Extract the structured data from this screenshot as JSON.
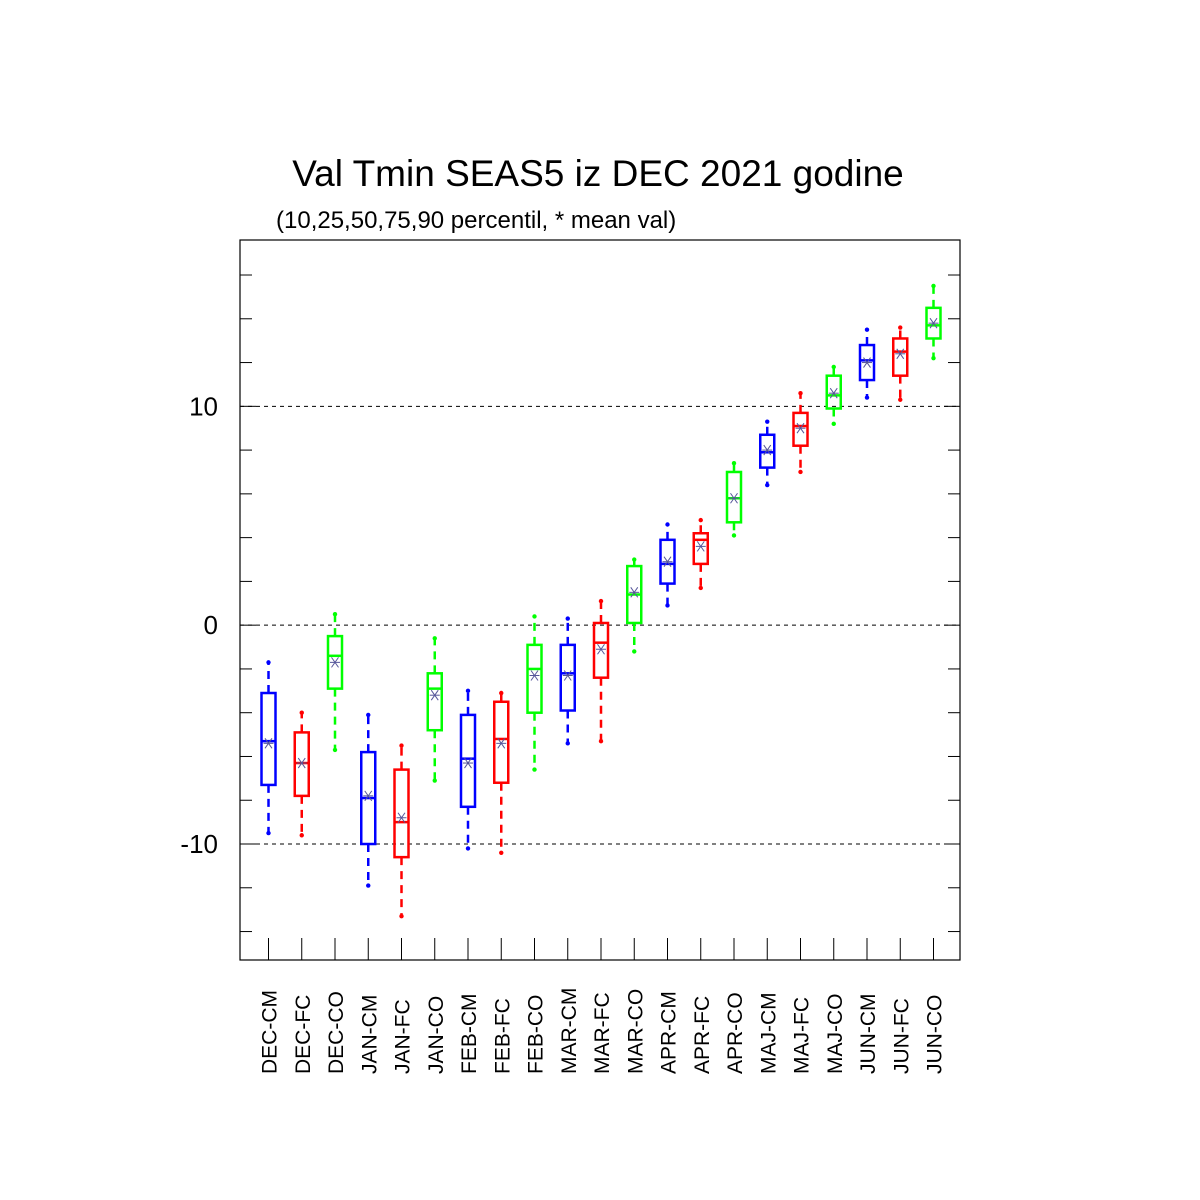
{
  "chart_data": {
    "type": "box",
    "title": "Val Tmin SEAS5 iz DEC 2021 godine",
    "subtitle": "(10,25,50,75,90 percentil, * mean val)",
    "xlabel": "",
    "ylabel": "",
    "ylim": [
      -15.3,
      17.6
    ],
    "yticks_labeled": [
      -10,
      0,
      10
    ],
    "ytick_minor_step": 2,
    "grid": "dashed horizontal lines at -10, 0, 10",
    "categories": [
      "DEC-CM",
      "DEC-FC",
      "DEC-CO",
      "JAN-CM",
      "JAN-FC",
      "JAN-CO",
      "FEB-CM",
      "FEB-FC",
      "FEB-CO",
      "MAR-CM",
      "MAR-FC",
      "MAR-CO",
      "APR-CM",
      "APR-FC",
      "APR-CO",
      "MAJ-CM",
      "MAJ-FC",
      "MAJ-CO",
      "JUN-CM",
      "JUN-FC",
      "JUN-CO"
    ],
    "series_colors": {
      "CM": "#0000ff",
      "FC": "#ff0000",
      "CO": "#00ff00"
    },
    "mean_marker_color": "#555599",
    "boxes": [
      {
        "category": "DEC-CM",
        "p10": -9.5,
        "p25": -7.3,
        "p50": -5.3,
        "p75": -3.1,
        "p90": -1.7,
        "mean": -5.4
      },
      {
        "category": "DEC-FC",
        "p10": -9.6,
        "p25": -7.8,
        "p50": -6.3,
        "p75": -4.9,
        "p90": -4.0,
        "mean": -6.3
      },
      {
        "category": "DEC-CO",
        "p10": -5.7,
        "p25": -2.9,
        "p50": -1.4,
        "p75": -0.5,
        "p90": 0.5,
        "mean": -1.7
      },
      {
        "category": "JAN-CM",
        "p10": -11.9,
        "p25": -10.0,
        "p50": -7.9,
        "p75": -5.8,
        "p90": -4.1,
        "mean": -7.8
      },
      {
        "category": "JAN-FC",
        "p10": -13.3,
        "p25": -10.6,
        "p50": -9.0,
        "p75": -6.6,
        "p90": -5.5,
        "mean": -8.8
      },
      {
        "category": "JAN-CO",
        "p10": -7.1,
        "p25": -4.8,
        "p50": -2.9,
        "p75": -2.2,
        "p90": -0.6,
        "mean": -3.2
      },
      {
        "category": "FEB-CM",
        "p10": -10.2,
        "p25": -8.3,
        "p50": -6.1,
        "p75": -4.1,
        "p90": -3.0,
        "mean": -6.3
      },
      {
        "category": "FEB-FC",
        "p10": -10.4,
        "p25": -7.2,
        "p50": -5.2,
        "p75": -3.5,
        "p90": -3.1,
        "mean": -5.4
      },
      {
        "category": "FEB-CO",
        "p10": -6.6,
        "p25": -4.0,
        "p50": -2.0,
        "p75": -0.9,
        "p90": 0.4,
        "mean": -2.3
      },
      {
        "category": "MAR-CM",
        "p10": -5.4,
        "p25": -3.9,
        "p50": -2.2,
        "p75": -0.9,
        "p90": 0.3,
        "mean": -2.3
      },
      {
        "category": "MAR-FC",
        "p10": -5.3,
        "p25": -2.4,
        "p50": -0.8,
        "p75": 0.1,
        "p90": 1.1,
        "mean": -1.1
      },
      {
        "category": "MAR-CO",
        "p10": -1.2,
        "p25": 0.1,
        "p50": 1.4,
        "p75": 2.7,
        "p90": 3.0,
        "mean": 1.5
      },
      {
        "category": "APR-CM",
        "p10": 0.9,
        "p25": 1.9,
        "p50": 2.8,
        "p75": 3.9,
        "p90": 4.6,
        "mean": 2.9
      },
      {
        "category": "APR-FC",
        "p10": 1.7,
        "p25": 2.8,
        "p50": 3.9,
        "p75": 4.2,
        "p90": 4.8,
        "mean": 3.6
      },
      {
        "category": "APR-CO",
        "p10": 4.1,
        "p25": 4.7,
        "p50": 5.8,
        "p75": 7.0,
        "p90": 7.4,
        "mean": 5.8
      },
      {
        "category": "MAJ-CM",
        "p10": 6.4,
        "p25": 7.2,
        "p50": 7.9,
        "p75": 8.7,
        "p90": 9.3,
        "mean": 8.0
      },
      {
        "category": "MAJ-FC",
        "p10": 7.0,
        "p25": 8.2,
        "p50": 9.1,
        "p75": 9.7,
        "p90": 10.6,
        "mean": 9.0
      },
      {
        "category": "MAJ-CO",
        "p10": 9.2,
        "p25": 9.9,
        "p50": 10.5,
        "p75": 11.4,
        "p90": 11.8,
        "mean": 10.6
      },
      {
        "category": "JUN-CM",
        "p10": 10.4,
        "p25": 11.2,
        "p50": 12.1,
        "p75": 12.8,
        "p90": 13.5,
        "mean": 12.0
      },
      {
        "category": "JUN-FC",
        "p10": 10.3,
        "p25": 11.4,
        "p50": 12.5,
        "p75": 13.1,
        "p90": 13.6,
        "mean": 12.4
      },
      {
        "category": "JUN-CO",
        "p10": 12.2,
        "p25": 13.1,
        "p50": 13.7,
        "p75": 14.5,
        "p90": 15.5,
        "mean": 13.8
      }
    ]
  }
}
